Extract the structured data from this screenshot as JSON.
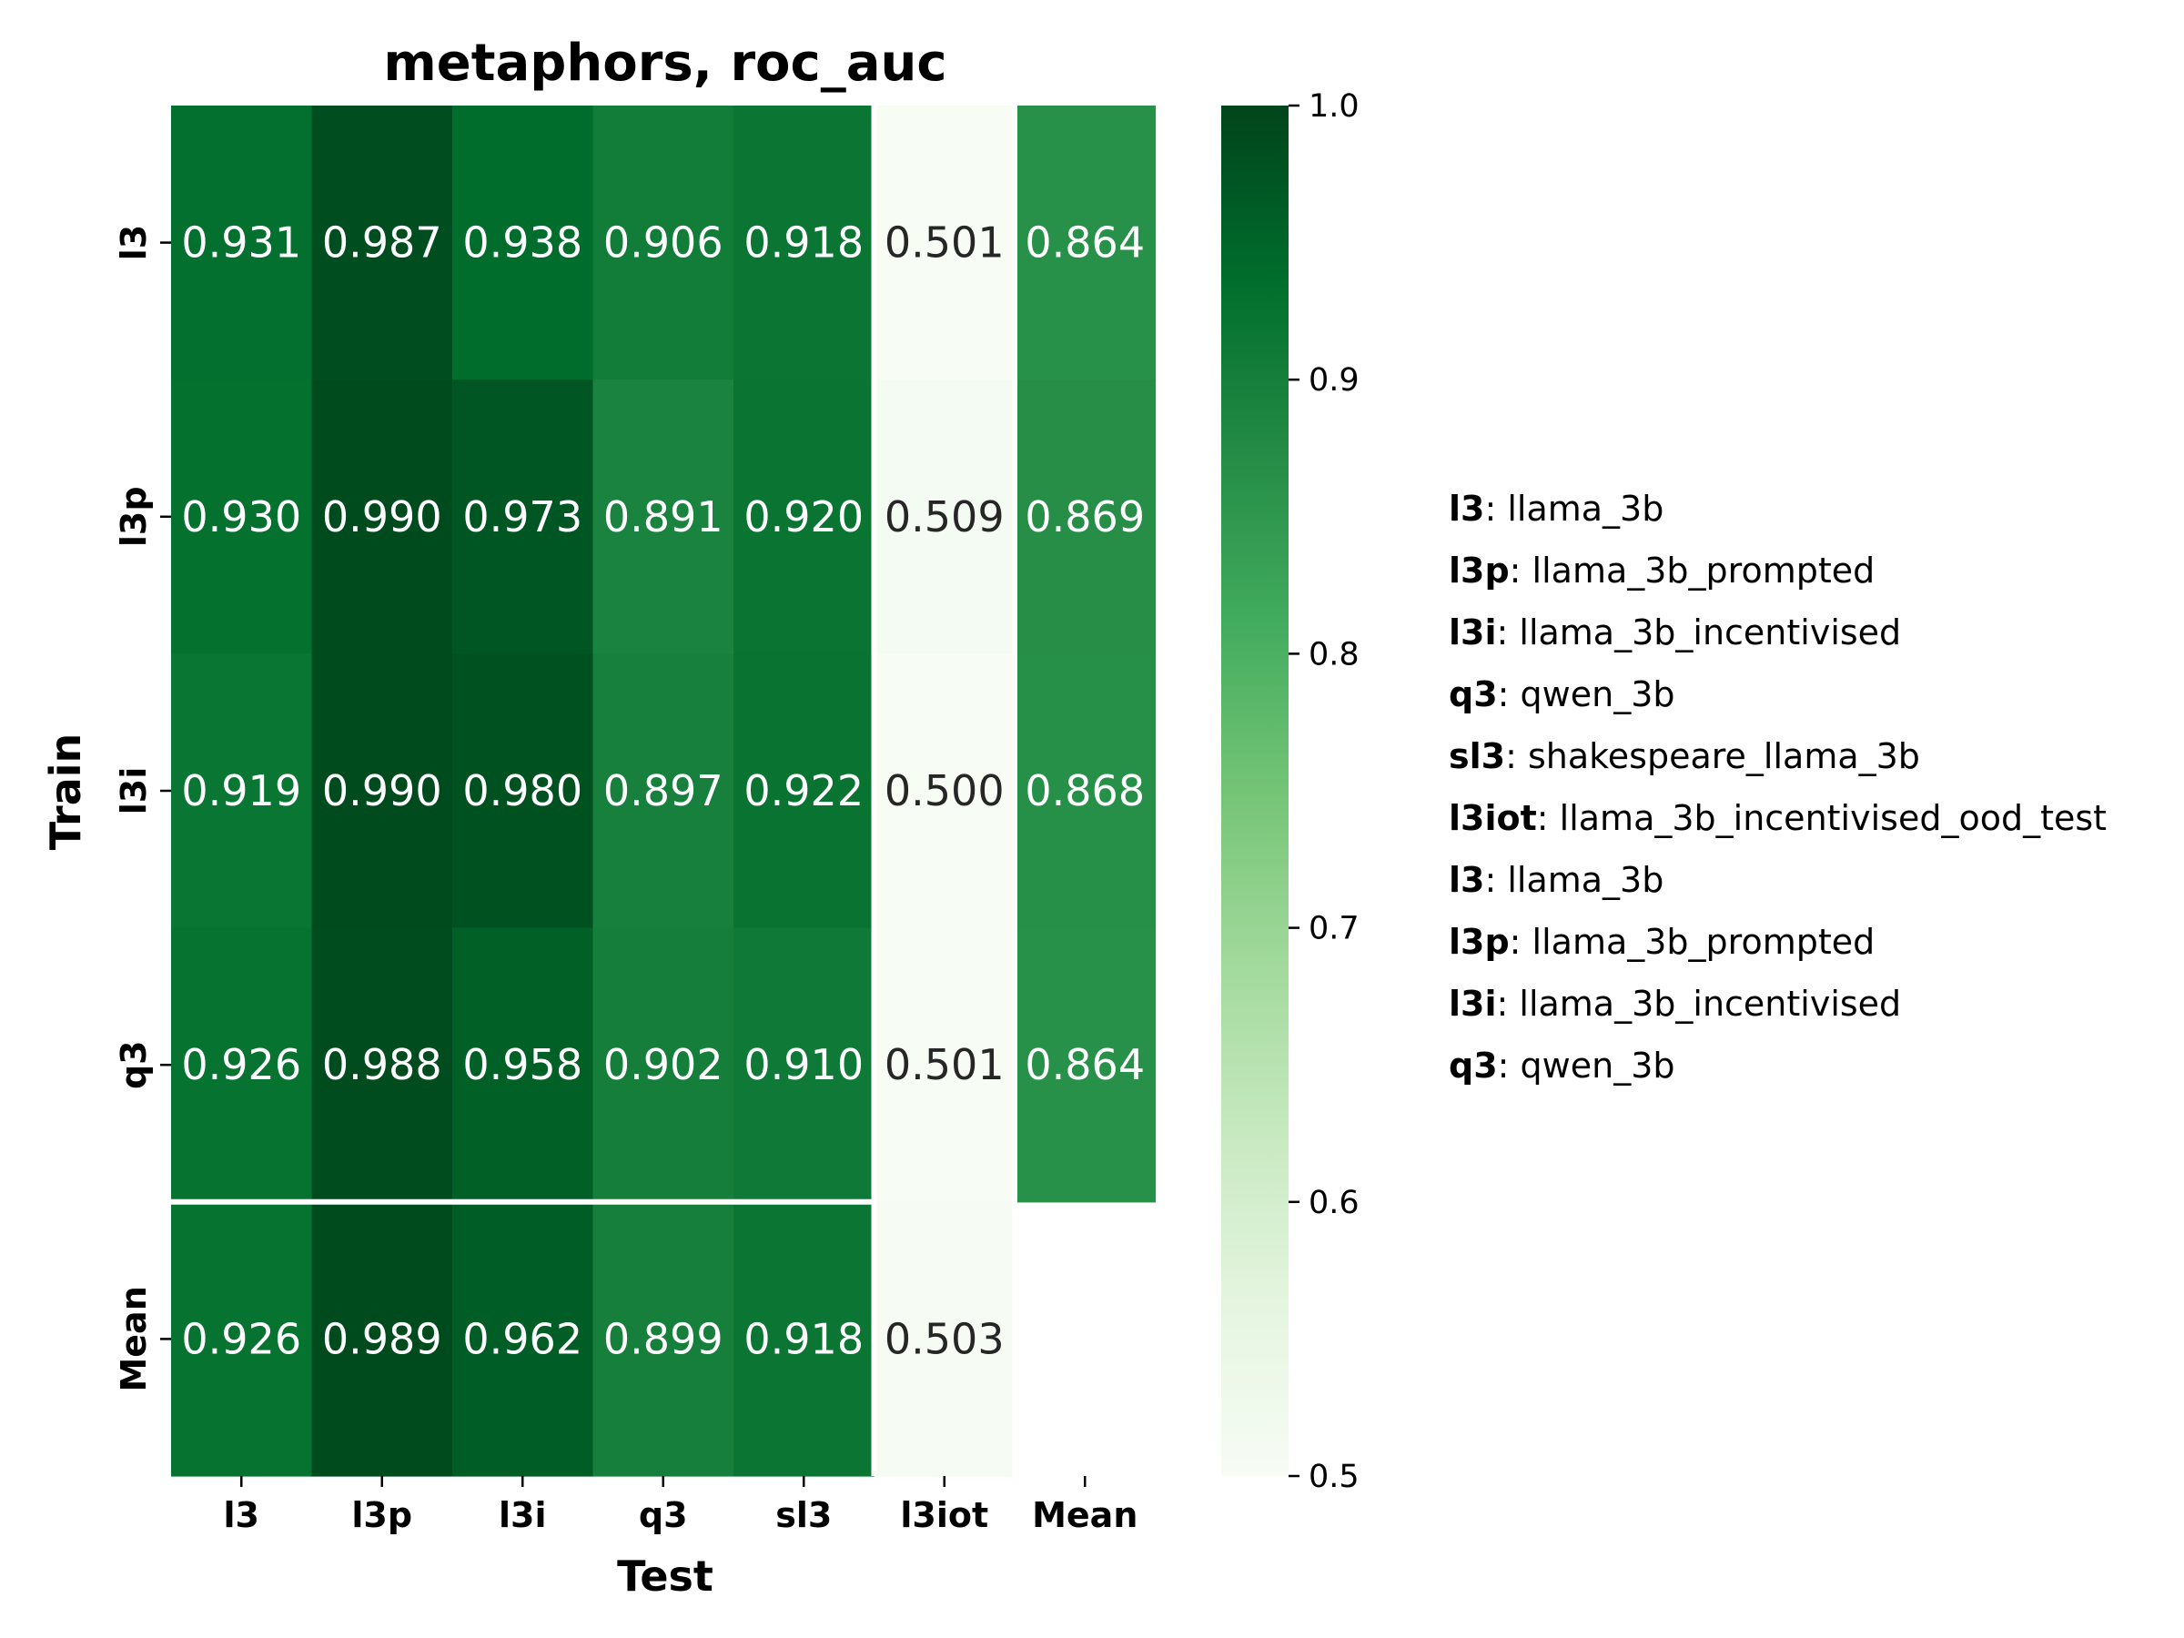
{
  "chart_data": {
    "type": "heatmap",
    "title": "metaphors, roc_auc",
    "xlabel": "Test",
    "ylabel": "Train",
    "x_categories": [
      "l3",
      "l3p",
      "l3i",
      "q3",
      "sl3",
      "l3iot",
      "Mean"
    ],
    "y_categories": [
      "l3",
      "l3p",
      "l3i",
      "q3",
      "Mean"
    ],
    "values": [
      [
        "0.931",
        "0.987",
        "0.938",
        "0.906",
        "0.918",
        "0.501",
        "0.864"
      ],
      [
        "0.930",
        "0.990",
        "0.973",
        "0.891",
        "0.920",
        "0.509",
        "0.869"
      ],
      [
        "0.919",
        "0.990",
        "0.980",
        "0.897",
        "0.922",
        "0.500",
        "0.868"
      ],
      [
        "0.926",
        "0.988",
        "0.958",
        "0.902",
        "0.910",
        "0.501",
        "0.864"
      ],
      [
        "0.926",
        "0.989",
        "0.962",
        "0.899",
        "0.918",
        "0.503",
        null
      ]
    ],
    "colorbar": {
      "range": [
        0.5,
        1.0
      ],
      "ticks": [
        "0.5",
        "0.6",
        "0.7",
        "0.8",
        "0.9",
        "1.0"
      ],
      "colormap": "Greens",
      "low_color": "#f7fcf5",
      "high_color": "#00441b"
    },
    "separators": "white lines before the Mean row and the l3iot column",
    "legend": [
      {
        "key": "l3",
        "text": ": llama_3b"
      },
      {
        "key": "l3p",
        "text": ": llama_3b_prompted"
      },
      {
        "key": "l3i",
        "text": ": llama_3b_incentivised"
      },
      {
        "key": "q3",
        "text": ": qwen_3b"
      },
      {
        "key": "sl3",
        "text": ": shakespeare_llama_3b"
      },
      {
        "key": "l3iot",
        "text": ": llama_3b_incentivised_ood_test"
      },
      {
        "key": "l3",
        "text": ": llama_3b"
      },
      {
        "key": "l3p",
        "text": ": llama_3b_prompted"
      },
      {
        "key": "l3i",
        "text": ": llama_3b_incentivised"
      },
      {
        "key": "q3",
        "text": ": qwen_3b"
      }
    ],
    "legend_placement": "right"
  }
}
